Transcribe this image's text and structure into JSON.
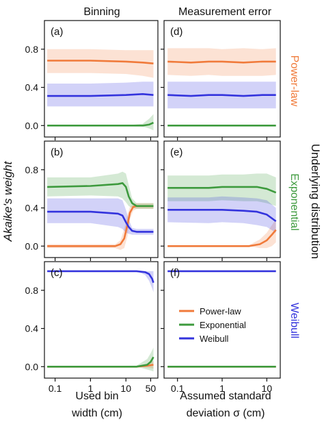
{
  "colors": {
    "power_law": "#f07a3a",
    "exponential": "#3d9a3d",
    "weibull": "#3333dd"
  },
  "chart_data": {
    "type": "line",
    "ylabel": "Akaike's weight",
    "right_label": "Underlying distribution",
    "column_titles": [
      "Binning",
      "Measurement error"
    ],
    "column_xlabels": [
      [
        "Used bin",
        "width (cm)"
      ],
      [
        "Assumed standard",
        "deviation σ (cm)"
      ]
    ],
    "row_labels": [
      "Power-law",
      "Exponential",
      "Weibull"
    ],
    "x_scale": "log",
    "y_ticks": [
      "0.0",
      "0.4",
      "0.8"
    ],
    "y_tick_values": [
      0,
      0.4,
      0.8
    ],
    "ylim": [
      -0.12,
      1.1
    ],
    "columns": [
      {
        "xlim": [
          0.05,
          80
        ],
        "x_ticks": [
          0.1,
          1,
          10,
          50
        ],
        "x_tick_labels": [
          "0.1",
          "1",
          "10",
          "50"
        ]
      },
      {
        "xlim": [
          0.05,
          20
        ],
        "x_ticks": [
          0.1,
          1,
          10
        ],
        "x_tick_labels": [
          "0.1",
          "1",
          "10"
        ]
      }
    ],
    "legend": {
      "entries": [
        "Power-law",
        "Exponential",
        "Weibull"
      ],
      "placement": "panel (f), center"
    },
    "panels": [
      {
        "label": "(a)",
        "row": 0,
        "col": 0,
        "series": [
          {
            "name": "Power-law",
            "x": [
              0.06,
              1,
              10,
              30,
              60
            ],
            "y": [
              0.68,
              0.68,
              0.67,
              0.66,
              0.65
            ],
            "lower": [
              0.55,
              0.55,
              0.54,
              0.52,
              0.5
            ],
            "upper": [
              0.8,
              0.8,
              0.79,
              0.79,
              0.79
            ]
          },
          {
            "name": "Exponential",
            "x": [
              0.06,
              10,
              30,
              45,
              60
            ],
            "y": [
              0.0,
              0.0,
              0.0,
              0.01,
              0.03
            ],
            "lower": [
              0.0,
              0.0,
              -0.01,
              -0.03,
              -0.05
            ],
            "upper": [
              0.0,
              0.0,
              0.02,
              0.07,
              0.12
            ]
          },
          {
            "name": "Weibull",
            "x": [
              0.06,
              1,
              10,
              30,
              60
            ],
            "y": [
              0.31,
              0.31,
              0.32,
              0.33,
              0.32
            ],
            "lower": [
              0.2,
              0.2,
              0.2,
              0.2,
              0.2
            ],
            "upper": [
              0.44,
              0.44,
              0.45,
              0.46,
              0.46
            ]
          }
        ]
      },
      {
        "label": "(b)",
        "row": 1,
        "col": 0,
        "series": [
          {
            "name": "Power-law",
            "x": [
              0.06,
              5,
              7,
              9,
              11,
              13,
              16,
              20,
              60
            ],
            "y": [
              0.0,
              0.0,
              0.02,
              0.08,
              0.22,
              0.35,
              0.41,
              0.42,
              0.42
            ],
            "lower": [
              -0.02,
              -0.02,
              -0.04,
              -0.02,
              0.1,
              0.28,
              0.37,
              0.39,
              0.39
            ],
            "upper": [
              0.02,
              0.02,
              0.06,
              0.18,
              0.33,
              0.41,
              0.44,
              0.45,
              0.45
            ]
          },
          {
            "name": "Exponential",
            "x": [
              0.06,
              1,
              6,
              8,
              10,
              12,
              15,
              20,
              60
            ],
            "y": [
              0.62,
              0.63,
              0.65,
              0.66,
              0.62,
              0.52,
              0.45,
              0.42,
              0.42
            ],
            "lower": [
              0.52,
              0.53,
              0.52,
              0.5,
              0.46,
              0.42,
              0.4,
              0.39,
              0.39
            ],
            "upper": [
              0.72,
              0.72,
              0.76,
              0.78,
              0.76,
              0.64,
              0.5,
              0.45,
              0.45
            ]
          },
          {
            "name": "Weibull",
            "x": [
              0.06,
              1,
              6,
              8,
              10,
              12,
              15,
              20,
              60
            ],
            "y": [
              0.36,
              0.36,
              0.34,
              0.32,
              0.25,
              0.2,
              0.16,
              0.15,
              0.15
            ],
            "lower": [
              0.24,
              0.24,
              0.2,
              0.18,
              0.14,
              0.13,
              0.12,
              0.12,
              0.12
            ],
            "upper": [
              0.5,
              0.5,
              0.5,
              0.48,
              0.38,
              0.28,
              0.19,
              0.18,
              0.18
            ]
          }
        ]
      },
      {
        "label": "(c)",
        "row": 2,
        "col": 0,
        "series": [
          {
            "name": "Power-law",
            "x": [
              0.06,
              20,
              40,
              60
            ],
            "y": [
              0.0,
              0.0,
              0.01,
              0.02
            ],
            "lower": [
              0.0,
              0.0,
              -0.01,
              -0.02
            ],
            "upper": [
              0.0,
              0.0,
              0.03,
              0.06
            ]
          },
          {
            "name": "Exponential",
            "x": [
              0.06,
              20,
              40,
              50,
              60
            ],
            "y": [
              0.0,
              0.0,
              0.02,
              0.05,
              0.1
            ],
            "lower": [
              0.0,
              0.0,
              -0.03,
              -0.04,
              -0.05
            ],
            "upper": [
              0.0,
              0.01,
              0.08,
              0.14,
              0.2
            ]
          },
          {
            "name": "Weibull",
            "x": [
              0.06,
              20,
              35,
              45,
              55,
              60
            ],
            "y": [
              1.0,
              1.0,
              0.99,
              0.97,
              0.92,
              0.88
            ],
            "lower": [
              1.0,
              1.0,
              0.96,
              0.9,
              0.82,
              0.78
            ],
            "upper": [
              1.0,
              1.0,
              1.0,
              1.0,
              1.0,
              1.0
            ]
          }
        ]
      },
      {
        "label": "(d)",
        "row": 0,
        "col": 1,
        "series": [
          {
            "name": "Power-law",
            "x": [
              0.06,
              0.2,
              0.5,
              1,
              3,
              8,
              16
            ],
            "y": [
              0.67,
              0.66,
              0.67,
              0.67,
              0.66,
              0.67,
              0.67
            ],
            "lower": [
              0.53,
              0.52,
              0.53,
              0.52,
              0.52,
              0.52,
              0.53
            ],
            "upper": [
              0.81,
              0.81,
              0.81,
              0.8,
              0.81,
              0.8,
              0.81
            ]
          },
          {
            "name": "Exponential",
            "x": [
              0.06,
              16
            ],
            "y": [
              0.0,
              0.0
            ],
            "lower": [
              0.0,
              0.0
            ],
            "upper": [
              0.0,
              0.0
            ]
          },
          {
            "name": "Weibull",
            "x": [
              0.06,
              0.2,
              0.5,
              1,
              3,
              8,
              16
            ],
            "y": [
              0.32,
              0.31,
              0.32,
              0.32,
              0.31,
              0.32,
              0.32
            ],
            "lower": [
              0.18,
              0.18,
              0.18,
              0.18,
              0.18,
              0.18,
              0.18
            ],
            "upper": [
              0.46,
              0.46,
              0.46,
              0.46,
              0.46,
              0.46,
              0.46
            ]
          }
        ]
      },
      {
        "label": "(e)",
        "row": 1,
        "col": 1,
        "series": [
          {
            "name": "Power-law",
            "x": [
              0.06,
              4,
              7,
              10,
              13,
              16
            ],
            "y": [
              0.0,
              0.0,
              0.02,
              0.06,
              0.12,
              0.17
            ],
            "lower": [
              0.0,
              0.0,
              -0.02,
              -0.02,
              0.0,
              0.04
            ],
            "upper": [
              0.0,
              0.01,
              0.07,
              0.14,
              0.22,
              0.28
            ]
          },
          {
            "name": "Exponential",
            "x": [
              0.06,
              0.5,
              1,
              3,
              6,
              10,
              16
            ],
            "y": [
              0.61,
              0.61,
              0.62,
              0.62,
              0.62,
              0.6,
              0.56
            ],
            "lower": [
              0.47,
              0.47,
              0.48,
              0.47,
              0.47,
              0.45,
              0.42
            ],
            "upper": [
              0.74,
              0.74,
              0.75,
              0.75,
              0.76,
              0.76,
              0.72
            ]
          },
          {
            "name": "Weibull",
            "x": [
              0.06,
              0.5,
              1,
              3,
              6,
              10,
              16
            ],
            "y": [
              0.38,
              0.38,
              0.38,
              0.37,
              0.36,
              0.33,
              0.26
            ],
            "lower": [
              0.25,
              0.24,
              0.25,
              0.24,
              0.22,
              0.2,
              0.14
            ],
            "upper": [
              0.51,
              0.51,
              0.52,
              0.51,
              0.5,
              0.48,
              0.4
            ]
          }
        ]
      },
      {
        "label": "(f)",
        "row": 2,
        "col": 1,
        "series": [
          {
            "name": "Power-law",
            "x": [
              0.06,
              16
            ],
            "y": [
              0.0,
              0.0
            ],
            "lower": [
              0.0,
              0.0
            ],
            "upper": [
              0.0,
              0.0
            ]
          },
          {
            "name": "Exponential",
            "x": [
              0.06,
              16
            ],
            "y": [
              0.0,
              0.0
            ],
            "lower": [
              0.0,
              0.0
            ],
            "upper": [
              0.0,
              0.0
            ]
          },
          {
            "name": "Weibull",
            "x": [
              0.06,
              16
            ],
            "y": [
              1.0,
              1.0
            ],
            "lower": [
              1.0,
              1.0
            ],
            "upper": [
              1.0,
              1.0
            ]
          }
        ]
      }
    ]
  }
}
